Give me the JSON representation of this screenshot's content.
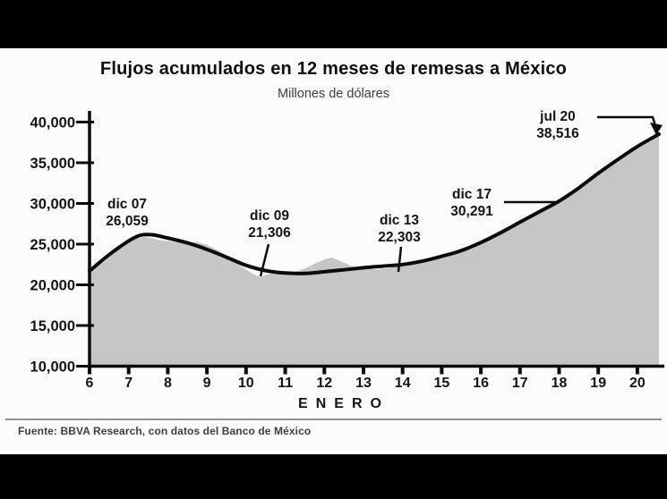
{
  "title": "Flujos acumulados en 12 meses de remesas a México",
  "subtitle": "Millones de dólares",
  "source": "Fuente: BBVA Research, con datos del Banco de México",
  "x_axis": {
    "title": "ENERO",
    "ticks": [
      "6",
      "7",
      "8",
      "9",
      "10",
      "11",
      "12",
      "13",
      "14",
      "15",
      "16",
      "17",
      "18",
      "19",
      "20"
    ]
  },
  "y_axis": {
    "ticks": [
      "40,000",
      "35,000",
      "30,000",
      "25,000",
      "20,000",
      "15,000",
      "10,000"
    ]
  },
  "annotations": [
    {
      "label": "dic 07",
      "value": "26,059"
    },
    {
      "label": "dic 09",
      "value": "21,306"
    },
    {
      "label": "dic 13",
      "value": "22,303"
    },
    {
      "label": "dic 17",
      "value": "30,291"
    },
    {
      "label": "jul 20",
      "value": "38,516"
    }
  ],
  "colors": {
    "letterbox": "#000000",
    "background": "#fcfcfc",
    "area_fill": "#c6c6c6",
    "line": "#0b0b0b",
    "text": "#141414",
    "divider": "#8f8f8f"
  },
  "chart_data": {
    "type": "area",
    "title": "Flujos acumulados en 12 meses de remesas a México",
    "subtitle": "Millones de dólares",
    "xlabel": "ENERO",
    "ylabel": "Millones de dólares",
    "xlim": [
      6,
      20.6
    ],
    "ylim": [
      10000,
      40000
    ],
    "x_tick_values": [
      6,
      7,
      8,
      9,
      10,
      11,
      12,
      13,
      14,
      15,
      16,
      17,
      18,
      19,
      20
    ],
    "y_tick_values": [
      40000,
      35000,
      30000,
      25000,
      20000,
      15000,
      10000
    ],
    "grid": false,
    "legend": "none",
    "series": [
      {
        "name": "accumulated-12m-flows-area",
        "type": "area",
        "x": [
          6,
          6.4,
          6.8,
          7.1,
          7.4,
          7.8,
          8.1,
          8.45,
          8.75,
          9,
          9.3,
          9.6,
          9.9,
          10.15,
          10.35,
          10.6,
          10.9,
          11.2,
          11.5,
          11.8,
          12.05,
          12.2,
          12.45,
          12.7,
          13,
          13.35,
          13.7,
          14,
          14.5,
          15,
          15.5,
          16,
          16.5,
          17,
          17.5,
          18,
          18.5,
          19,
          19.5,
          20,
          20.55
        ],
        "y": [
          21500,
          23000,
          24700,
          25600,
          25900,
          25500,
          25300,
          25150,
          25250,
          24900,
          24200,
          23100,
          22200,
          21400,
          20950,
          21350,
          21300,
          21500,
          22000,
          22700,
          23200,
          23350,
          22850,
          22300,
          22000,
          21900,
          22100,
          22400,
          22850,
          23450,
          24150,
          25150,
          26350,
          27650,
          28950,
          30250,
          31850,
          33650,
          35350,
          36950,
          38460
        ]
      },
      {
        "name": "smoothed-trend-line",
        "type": "line",
        "x": [
          6,
          6.5,
          7,
          7.3,
          7.6,
          8,
          8.5,
          9,
          9.5,
          10,
          10.5,
          11,
          11.5,
          12,
          12.5,
          13,
          13.5,
          14,
          14.5,
          15,
          15.5,
          16,
          16.5,
          17,
          17.5,
          18,
          18.5,
          19,
          19.5,
          20,
          20.55
        ],
        "y": [
          21700,
          23700,
          25400,
          26100,
          26150,
          25750,
          25150,
          24350,
          23400,
          22400,
          21750,
          21450,
          21400,
          21600,
          21850,
          22100,
          22300,
          22500,
          22900,
          23500,
          24200,
          25200,
          26400,
          27700,
          29000,
          30291,
          31900,
          33700,
          35400,
          37000,
          38516
        ]
      }
    ],
    "callouts": [
      {
        "label": "dic 07",
        "value": 26059,
        "x": 8
      },
      {
        "label": "dic 09",
        "value": 21306,
        "x": 10
      },
      {
        "label": "dic 13",
        "value": 22303,
        "x": 14
      },
      {
        "label": "dic 17",
        "value": 30291,
        "x": 18
      },
      {
        "label": "jul 20",
        "value": 38516,
        "x": 20.55
      }
    ]
  }
}
